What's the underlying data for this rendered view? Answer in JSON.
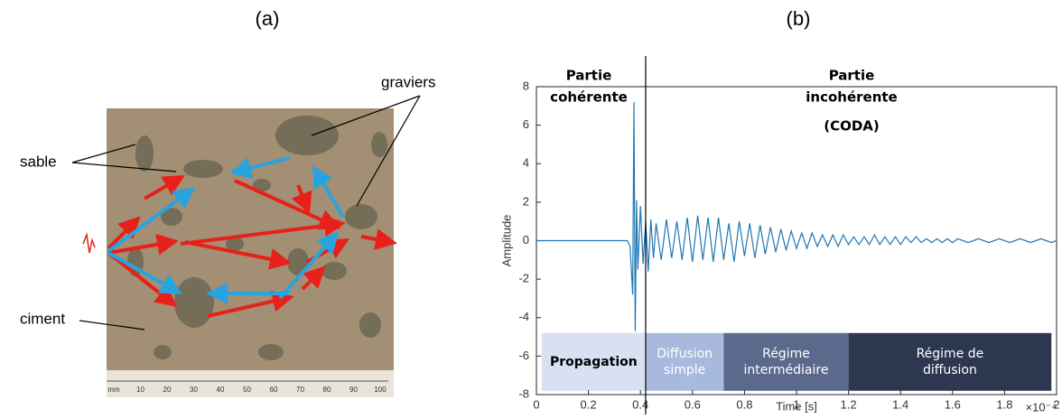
{
  "panel_a": {
    "title": "(a)",
    "labels": {
      "sable": "sable",
      "graviers": "graviers",
      "ciment": "ciment"
    },
    "ruler": [
      "mm",
      "10",
      "20",
      "30",
      "40",
      "50",
      "60",
      "70",
      "80",
      "90",
      "100"
    ]
  },
  "chart_data": {
    "type": "line",
    "title": "(b)",
    "x_label": "Time [s]",
    "y_label": "Amplitude",
    "x_multiplier": "×10⁻⁴",
    "xlim": [
      0,
      2
    ],
    "ylim": [
      -8,
      8
    ],
    "xticks": [
      0,
      0.2,
      0.4,
      0.6,
      0.8,
      1,
      1.2,
      1.4,
      1.6,
      1.8,
      2
    ],
    "yticks": [
      -8,
      -6,
      -4,
      -2,
      0,
      2,
      4,
      6,
      8
    ],
    "color": "#1f77b4",
    "divider_x": 0.42,
    "annotations": [
      "Partie",
      "cohérente",
      "Partie",
      "incohérente",
      "(CODA)"
    ],
    "bands": [
      {
        "label": [
          "Propagation"
        ],
        "x0": 0.02,
        "x1": 0.42,
        "y0": -7.8,
        "y1": -4.8,
        "color": "#d7e1f1",
        "text_color": "#000000"
      },
      {
        "label": [
          "Diffusion",
          "simple"
        ],
        "x0": 0.42,
        "x1": 0.72,
        "y0": -7.8,
        "y1": -4.8,
        "color": "#a7badd",
        "text_color": "#ffffff"
      },
      {
        "label": [
          "Régime",
          "intermédiaire"
        ],
        "x0": 0.72,
        "x1": 1.2,
        "y0": -7.8,
        "y1": -4.8,
        "color": "#5b6a8c",
        "text_color": "#ffffff"
      },
      {
        "label": [
          "Régime de",
          "diffusion"
        ],
        "x0": 1.2,
        "x1": 1.98,
        "y0": -7.8,
        "y1": -4.8,
        "color": "#2d3850",
        "text_color": "#ffffff"
      }
    ],
    "x": [
      0,
      0.35,
      0.36,
      0.37,
      0.375,
      0.38,
      0.385,
      0.39,
      0.4,
      0.41,
      0.42,
      0.43,
      0.44,
      0.45,
      0.46,
      0.48,
      0.5,
      0.52,
      0.54,
      0.56,
      0.58,
      0.6,
      0.62,
      0.64,
      0.66,
      0.68,
      0.7,
      0.72,
      0.74,
      0.76,
      0.78,
      0.8,
      0.82,
      0.84,
      0.86,
      0.88,
      0.9,
      0.92,
      0.94,
      0.96,
      0.98,
      1,
      1.02,
      1.04,
      1.06,
      1.08,
      1.1,
      1.12,
      1.14,
      1.16,
      1.18,
      1.2,
      1.22,
      1.24,
      1.26,
      1.28,
      1.3,
      1.32,
      1.34,
      1.36,
      1.38,
      1.4,
      1.42,
      1.44,
      1.46,
      1.48,
      1.5,
      1.52,
      1.54,
      1.56,
      1.58,
      1.6,
      1.62,
      1.66,
      1.7,
      1.74,
      1.78,
      1.82,
      1.86,
      1.9,
      1.94,
      1.98,
      2
    ],
    "values": [
      0,
      0,
      -0.3,
      -2.8,
      7.2,
      -4.7,
      2.1,
      -1.5,
      1.8,
      -1.2,
      1,
      -1.6,
      1.1,
      -0.9,
      0.9,
      -1,
      1.1,
      -0.9,
      1,
      -1,
      1.2,
      -1.1,
      1.3,
      -1,
      1.2,
      -1.1,
      1.2,
      -1,
      0.9,
      -1.1,
      1,
      -0.8,
      0.9,
      -0.9,
      0.8,
      -0.7,
      0.7,
      -0.6,
      0.6,
      -0.5,
      0.5,
      -0.4,
      0.4,
      -0.4,
      0.4,
      -0.3,
      0.3,
      -0.3,
      0.3,
      -0.3,
      0.3,
      -0.2,
      0.2,
      -0.2,
      0.2,
      -0.2,
      0.3,
      -0.2,
      0.2,
      -0.2,
      0.2,
      -0.2,
      0.2,
      -0.1,
      0.2,
      -0.1,
      0.1,
      -0.1,
      0.1,
      -0.1,
      0.1,
      -0.1,
      0.1,
      -0.1,
      0.1,
      -0.1,
      0.1,
      -0.1,
      0.1,
      -0.1,
      0.1,
      -0.1,
      0
    ]
  }
}
